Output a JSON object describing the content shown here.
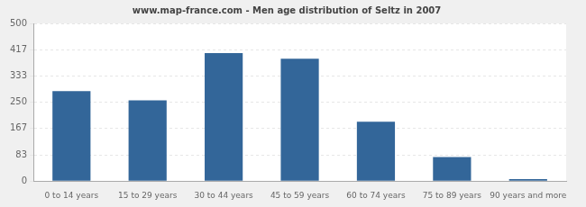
{
  "chart_data": {
    "type": "bar",
    "title": "www.map-france.com - Men age distribution of Seltz in 2007",
    "categories": [
      "0 to 14 years",
      "15 to 29 years",
      "30 to 44 years",
      "45 to 59 years",
      "60 to 74 years",
      "75 to 89 years",
      "90 years and more"
    ],
    "values": [
      285,
      256,
      406,
      388,
      188,
      76,
      6
    ],
    "color": "#336699",
    "ylim": [
      0,
      500
    ],
    "yticks": [
      0,
      83,
      167,
      250,
      333,
      417,
      500
    ],
    "grid": true
  }
}
